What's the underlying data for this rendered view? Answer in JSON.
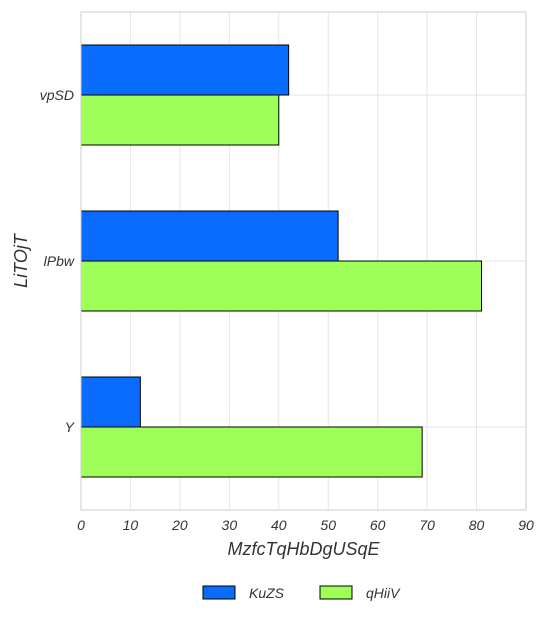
{
  "chart_data": {
    "type": "bar",
    "orientation": "horizontal",
    "title": "",
    "xlabel": "MzfcTqHbDgUSqE",
    "ylabel": "LiTOjT",
    "categories": [
      "vpSD",
      "lPbw",
      "Y"
    ],
    "series": [
      {
        "name": "KuZS",
        "values": [
          42,
          52,
          12
        ],
        "color": "#0a6cff"
      },
      {
        "name": "qHiiV",
        "values": [
          40,
          81,
          69
        ],
        "color": "#9dff57"
      }
    ],
    "xlim": [
      0,
      90
    ],
    "xticks": [
      0,
      10,
      20,
      30,
      40,
      50,
      60,
      70,
      80,
      90
    ],
    "grid": true,
    "legend_position": "bottom-center"
  }
}
